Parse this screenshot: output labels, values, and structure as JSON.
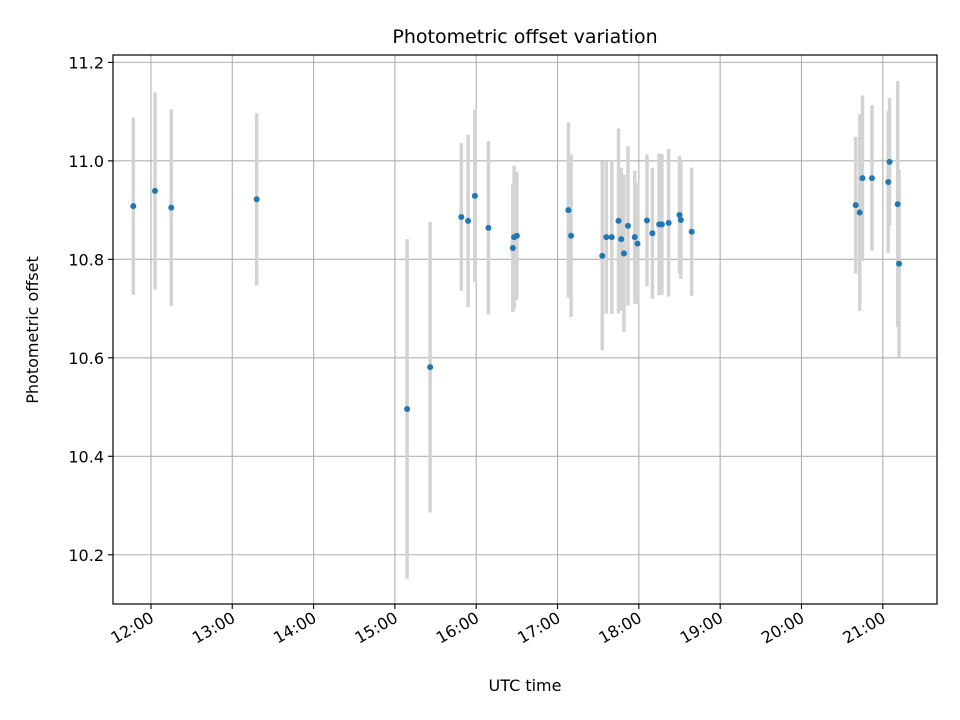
{
  "chart_data": {
    "type": "scatter",
    "title": "Photometric offset variation",
    "xlabel": "UTC time",
    "ylabel": "Photometric offset",
    "xlim": [
      "11:32",
      "21:40"
    ],
    "ylim": [
      10.1,
      11.215
    ],
    "x_ticks": [
      "12:00",
      "13:00",
      "14:00",
      "15:00",
      "16:00",
      "17:00",
      "18:00",
      "19:00",
      "20:00",
      "21:00"
    ],
    "y_ticks": [
      10.2,
      10.4,
      10.6,
      10.8,
      11.0,
      11.2
    ],
    "y_tick_labels": [
      "10.2",
      "10.4",
      "10.6",
      "10.8",
      "11.0",
      "11.2"
    ],
    "grid": true,
    "point_color": "#1f77b4",
    "errorbar_color": "#d3d3d3",
    "points": [
      {
        "x": "11:47",
        "y": 10.908,
        "err": 0.18
      },
      {
        "x": "12:03",
        "y": 10.939,
        "err": 0.2
      },
      {
        "x": "12:15",
        "y": 10.905,
        "err": 0.2
      },
      {
        "x": "13:18",
        "y": 10.922,
        "err": 0.175
      },
      {
        "x": "15:09",
        "y": 10.496,
        "err": 0.345
      },
      {
        "x": "15:26",
        "y": 10.581,
        "err": 0.295
      },
      {
        "x": "15:49",
        "y": 10.886,
        "err": 0.15
      },
      {
        "x": "15:54",
        "y": 10.878,
        "err": 0.175
      },
      {
        "x": "15:59",
        "y": 10.929,
        "err": 0.175
      },
      {
        "x": "16:09",
        "y": 10.864,
        "err": 0.176
      },
      {
        "x": "16:27",
        "y": 10.823,
        "err": 0.13
      },
      {
        "x": "16:28",
        "y": 10.845,
        "err": 0.145
      },
      {
        "x": "16:30",
        "y": 10.848,
        "err": 0.13
      },
      {
        "x": "17:08",
        "y": 10.9,
        "err": 0.178
      },
      {
        "x": "17:10",
        "y": 10.848,
        "err": 0.165
      },
      {
        "x": "17:33",
        "y": 10.807,
        "err": 0.192
      },
      {
        "x": "17:36",
        "y": 10.845,
        "err": 0.155
      },
      {
        "x": "17:40",
        "y": 10.845,
        "err": 0.156
      },
      {
        "x": "17:45",
        "y": 10.878,
        "err": 0.188
      },
      {
        "x": "17:47",
        "y": 10.841,
        "err": 0.145
      },
      {
        "x": "17:49",
        "y": 10.812,
        "err": 0.16
      },
      {
        "x": "17:52",
        "y": 10.868,
        "err": 0.162
      },
      {
        "x": "17:57",
        "y": 10.845,
        "err": 0.135
      },
      {
        "x": "17:59",
        "y": 10.832,
        "err": 0.123
      },
      {
        "x": "18:06",
        "y": 10.879,
        "err": 0.134
      },
      {
        "x": "18:10",
        "y": 10.853,
        "err": 0.133
      },
      {
        "x": "18:15",
        "y": 10.871,
        "err": 0.144
      },
      {
        "x": "18:17",
        "y": 10.871,
        "err": 0.143
      },
      {
        "x": "18:22",
        "y": 10.874,
        "err": 0.15
      },
      {
        "x": "18:30",
        "y": 10.89,
        "err": 0.12
      },
      {
        "x": "18:31",
        "y": 10.88,
        "err": 0.12
      },
      {
        "x": "18:39",
        "y": 10.856,
        "err": 0.13
      },
      {
        "x": "20:40",
        "y": 10.91,
        "err": 0.139
      },
      {
        "x": "20:43",
        "y": 10.895,
        "err": 0.2
      },
      {
        "x": "20:45",
        "y": 10.965,
        "err": 0.168
      },
      {
        "x": "20:52",
        "y": 10.965,
        "err": 0.148
      },
      {
        "x": "21:04",
        "y": 10.957,
        "err": 0.144
      },
      {
        "x": "21:05",
        "y": 10.998,
        "err": 0.13
      },
      {
        "x": "21:11",
        "y": 10.912,
        "err": 0.25
      },
      {
        "x": "21:12",
        "y": 10.791,
        "err": 0.19
      }
    ]
  }
}
